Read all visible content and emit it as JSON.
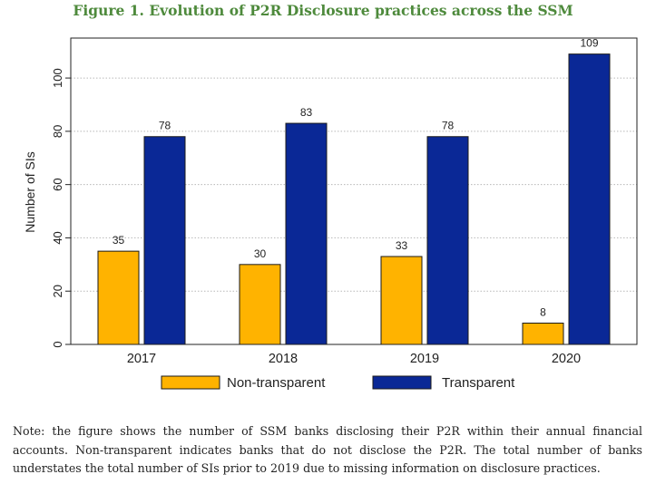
{
  "figure": {
    "title": "Figure 1. Evolution of P2R Disclosure practices across the SSM",
    "note": "Note: the figure shows the number of SSM banks disclosing their P2R within their annual financial accounts. Non-transparent indicates banks that do not disclose the P2R. The total number of banks understates the total number of SIs prior to 2019 due to missing information on disclosure practices."
  },
  "chart_data": {
    "type": "bar",
    "title": "Figure 1. Evolution of P2R Disclosure practices across the SSM",
    "xlabel": "",
    "ylabel": "Number of SIs",
    "categories": [
      "2017",
      "2018",
      "2019",
      "2020"
    ],
    "series": [
      {
        "name": "Non-transparent",
        "values": [
          35,
          30,
          33,
          8
        ],
        "color": "#FFB300"
      },
      {
        "name": "Transparent",
        "values": [
          78,
          83,
          78,
          109
        ],
        "color": "#0A2896"
      }
    ],
    "ylim": [
      0,
      115
    ],
    "yticks": [
      0,
      20,
      40,
      60,
      80,
      100
    ],
    "grid": true,
    "legend_position": "bottom"
  }
}
